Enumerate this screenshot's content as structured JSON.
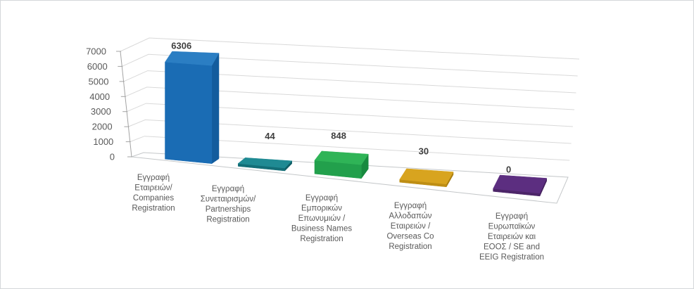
{
  "page": {
    "background": "#ffffff",
    "border_color": "#d4d7d9"
  },
  "chart_data": {
    "type": "bar",
    "style": "3d-column-perspective",
    "title": "",
    "xlabel": "",
    "ylabel": "",
    "ylim": [
      0,
      7000
    ],
    "ytick_step": 1000,
    "ytick_labels": [
      "0",
      "1000",
      "2000",
      "3000",
      "4000",
      "5000",
      "6000",
      "7000"
    ],
    "grid": true,
    "legend": false,
    "categories": [
      {
        "label": "Εγγραφή Εταιρειών/ Companies Registration",
        "lines": [
          "Εγγραφή",
          "Εταιρειών/",
          "Companies",
          "Registration"
        ]
      },
      {
        "label": "Εγγραφή Συνεταιρισμών/ Partnerships Registration",
        "lines": [
          "Εγγραφή",
          "Συνεταιρισμών/",
          "Partnerships",
          "Registration"
        ]
      },
      {
        "label": "Εγγραφή Εμπορικών Επωνυμιών / Business Names Registration",
        "lines": [
          "Εγγραφή",
          "Εμπορικών",
          "Επωνυμιών /",
          "Business Names",
          "Registration"
        ]
      },
      {
        "label": "Εγγραφή Αλλοδαπών Εταιρειών / Overseas Co Registration",
        "lines": [
          "Εγγραφή",
          "Αλλοδαπών",
          "Εταιρειών /",
          "Overseas Co",
          "Registration"
        ]
      },
      {
        "label": "Εγγραφή Ευρωπαϊκών Εταιρειών και ΕΟΟΣ / SE and EEIG Registration",
        "lines": [
          "Εγγραφή",
          "Ευρωπαϊκών",
          "Εταιρειών και",
          "ΕΟΟΣ / SE and",
          "EEIG Registration"
        ]
      }
    ],
    "values": [
      6306,
      44,
      848,
      30,
      0
    ],
    "data_labels": [
      "6306",
      "44",
      "848",
      "30",
      "0"
    ],
    "bar_colors": [
      {
        "name": "blue",
        "top": "#2b7ec3",
        "front": "#1a6cb4",
        "side": "#135c9d"
      },
      {
        "name": "teal",
        "top": "#1f8a93",
        "front": "#136e77",
        "side": "#0f5f67"
      },
      {
        "name": "green",
        "top": "#2fb457",
        "front": "#22a04c",
        "side": "#188a3f"
      },
      {
        "name": "gold",
        "top": "#d8a41f",
        "front": "#be8e14",
        "side": "#a87d10"
      },
      {
        "name": "purple",
        "top": "#5c2e80",
        "front": "#4c2568",
        "side": "#431f5c"
      }
    ],
    "text_colors": {
      "ticks": "#595959",
      "categories": "#595959",
      "data_labels": "#3f3f3f"
    },
    "grid_color": "#d9d9d9",
    "axis_color": "#a3a3a3",
    "floor_edge_color": "#c4c7c9"
  }
}
